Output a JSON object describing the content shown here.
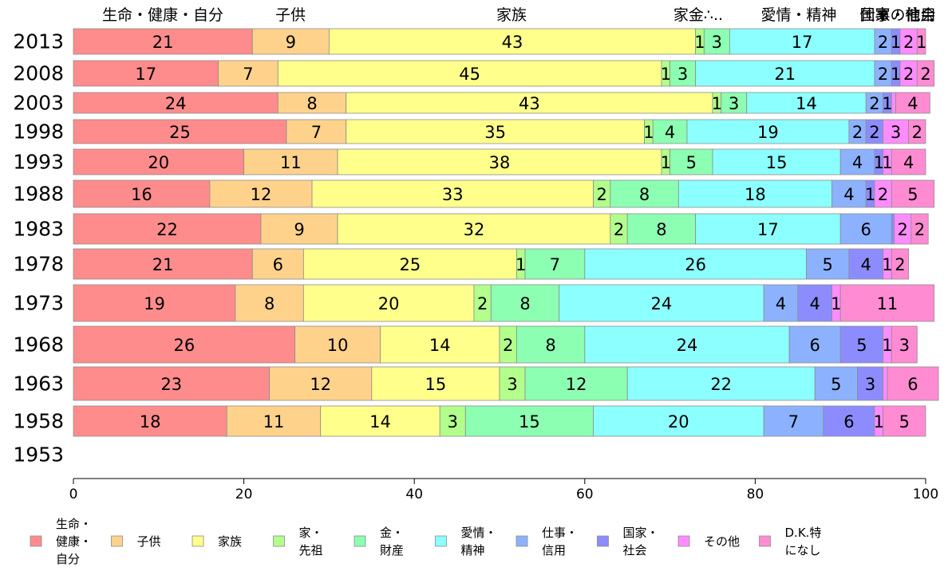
{
  "chart_data": {
    "type": "bar",
    "orientation": "horizontal",
    "stacked": true,
    "title": "",
    "xlabel": "",
    "ylabel": "",
    "xlim": [
      0,
      100
    ],
    "x_ticks": [
      "0",
      "20",
      "40",
      "60",
      "80",
      "100"
    ],
    "grid": false,
    "legend_position": "bottom",
    "top_labels": [
      "生命・健康・自分",
      "子供",
      "家族",
      "家金∴..",
      "愛情・精神",
      "仕事・信用",
      "国家・社会",
      "その他"
    ],
    "categories": [
      "2013",
      "2008",
      "2003",
      "1998",
      "1993",
      "1988",
      "1983",
      "1978",
      "1973",
      "1968",
      "1963",
      "1958",
      "1953"
    ],
    "series": [
      {
        "name": "生命・健康・自分",
        "legend_lines": [
          "生命・",
          "健康・",
          "自分"
        ],
        "color": "#FF8C8C",
        "values": [
          21,
          17,
          24,
          25,
          20,
          16,
          22,
          21,
          19,
          26,
          23,
          18,
          null
        ]
      },
      {
        "name": "子供",
        "legend_lines": [
          "子供"
        ],
        "color": "#FFD28C",
        "values": [
          9,
          7,
          8,
          7,
          11,
          12,
          9,
          6,
          8,
          10,
          12,
          11,
          null
        ]
      },
      {
        "name": "家族",
        "legend_lines": [
          "家族"
        ],
        "color": "#FFFF8C",
        "values": [
          43,
          45,
          43,
          35,
          38,
          33,
          32,
          25,
          20,
          14,
          15,
          14,
          null
        ]
      },
      {
        "name": "家・先祖",
        "legend_lines": [
          "家・",
          "先祖"
        ],
        "color": "#B2FF8C",
        "values": [
          1,
          1,
          1,
          1,
          1,
          2,
          2,
          1,
          2,
          2,
          3,
          3,
          null
        ]
      },
      {
        "name": "金・財産",
        "legend_lines": [
          "金・",
          "財産"
        ],
        "color": "#8CFFB2",
        "values": [
          3,
          3,
          3,
          4,
          5,
          8,
          8,
          7,
          8,
          8,
          12,
          15,
          null
        ]
      },
      {
        "name": "愛情・精神",
        "legend_lines": [
          "愛情・",
          "精神"
        ],
        "color": "#8CFFFF",
        "values": [
          17,
          21,
          14,
          19,
          15,
          18,
          17,
          26,
          24,
          24,
          22,
          20,
          null
        ]
      },
      {
        "name": "仕事・信用",
        "legend_lines": [
          "仕事・",
          "信用"
        ],
        "color": "#8CB2FF",
        "values": [
          2,
          2,
          2,
          2,
          4,
          4,
          6,
          5,
          4,
          6,
          5,
          7,
          null
        ]
      },
      {
        "name": "国家・社会",
        "legend_lines": [
          "国家・",
          "社会"
        ],
        "color": "#8C8CFF",
        "values": [
          1,
          1,
          1,
          2,
          1,
          1,
          0.3,
          4,
          4,
          5,
          3,
          6,
          null
        ]
      },
      {
        "name": "その他",
        "legend_lines": [
          "その他"
        ],
        "color": "#FF8CFF",
        "values": [
          2,
          2,
          0.5,
          3,
          1,
          2,
          2,
          1,
          1,
          1,
          0.5,
          1,
          null
        ]
      },
      {
        "name": "D.K.特になし",
        "legend_lines": [
          "D.K.特",
          "になし"
        ],
        "color": "#FF8CD2",
        "values": [
          1,
          2,
          4,
          2,
          4,
          5,
          2,
          2,
          11,
          3,
          6,
          5,
          null
        ]
      }
    ],
    "data_labels": [
      [
        "21",
        "9",
        "43",
        "1",
        "3",
        "17",
        "2",
        "1",
        "2",
        "1"
      ],
      [
        "17",
        "7",
        "45",
        "1",
        "3",
        "21",
        "2",
        "1",
        "2",
        "2"
      ],
      [
        "24",
        "8",
        "43",
        "1",
        "3",
        "14",
        "2",
        "1",
        "",
        "4"
      ],
      [
        "25",
        "7",
        "35",
        "1",
        "4",
        "19",
        "2",
        "2",
        "3",
        "2"
      ],
      [
        "20",
        "11",
        "38",
        "1",
        "5",
        "15",
        "4",
        "1",
        "1",
        "4"
      ],
      [
        "16",
        "12",
        "33",
        "2",
        "8",
        "18",
        "4",
        "1",
        "2",
        "5"
      ],
      [
        "22",
        "9",
        "32",
        "2",
        "8",
        "17",
        "6",
        "",
        "2",
        "2"
      ],
      [
        "21",
        "6",
        "25",
        "1",
        "7",
        "26",
        "5",
        "4",
        "1",
        "2"
      ],
      [
        "19",
        "8",
        "20",
        "2",
        "8",
        "24",
        "4",
        "4",
        "1",
        "11"
      ],
      [
        "26",
        "10",
        "14",
        "2",
        "8",
        "24",
        "6",
        "5",
        "1",
        "3"
      ],
      [
        "23",
        "12",
        "15",
        "3",
        "12",
        "22",
        "5",
        "3",
        "",
        "6"
      ],
      [
        "18",
        "11",
        "14",
        "3",
        "15",
        "20",
        "7",
        "6",
        "1",
        "5"
      ],
      [
        "",
        "",
        "",
        "",
        "",
        "",
        "",
        "",
        "",
        ""
      ]
    ]
  }
}
